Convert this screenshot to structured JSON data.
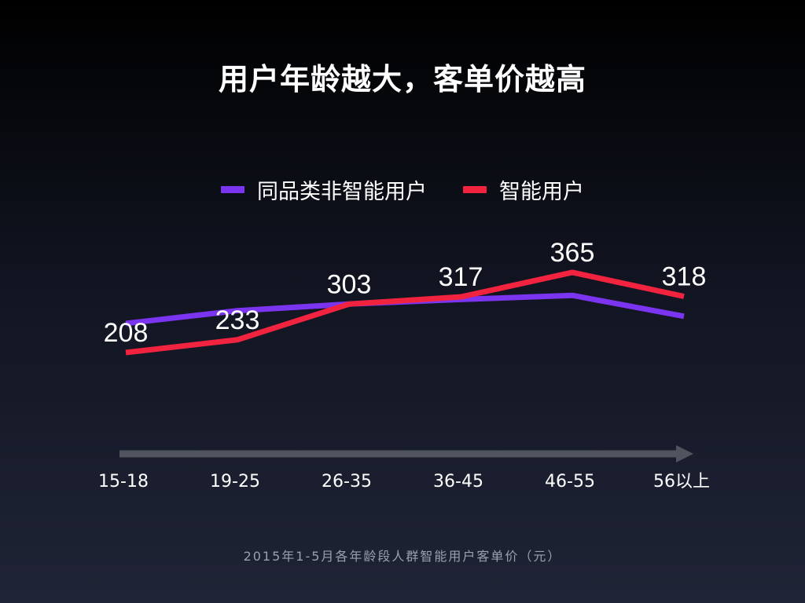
{
  "title": "用户年龄越大，客单价越高",
  "source_note": "2015年1-5月各年龄段人群智能用户客单价（元）",
  "colors": {
    "series_a": "#7b35f0",
    "series_b": "#f2233f",
    "axis_arrow": "#50545f"
  },
  "chart_data": {
    "type": "line",
    "title": "用户年龄越大，客单价越高",
    "categories": [
      "15-18",
      "19-25",
      "26-35",
      "36-45",
      "46-55",
      "56以上"
    ],
    "series": [
      {
        "name": "同品类非智能用户",
        "color": "#7b35f0",
        "values": [
          265,
          290,
          303,
          312,
          320,
          279
        ]
      },
      {
        "name": "智能用户",
        "color": "#f2233f",
        "values": [
          208,
          233,
          303,
          317,
          365,
          318
        ]
      }
    ],
    "data_labels": [
      "208",
      "233",
      "303",
      "317",
      "365",
      "318"
    ],
    "ylim": [
      0,
      400
    ],
    "grid": false,
    "legend_position": "top-center",
    "xlabel": "",
    "ylabel": ""
  }
}
